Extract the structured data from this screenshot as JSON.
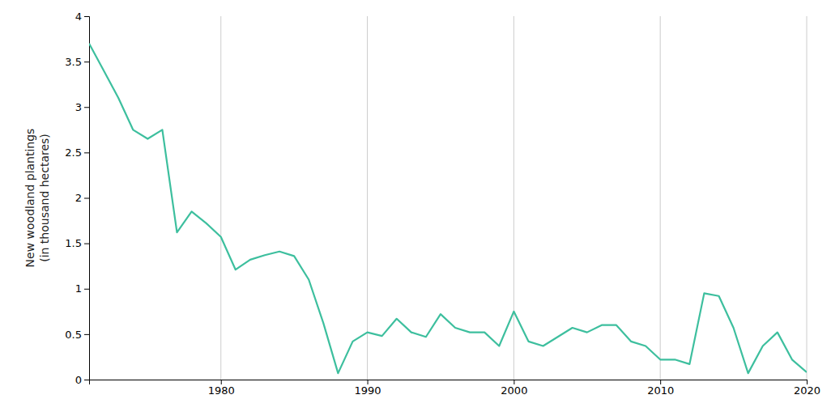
{
  "chart_data": {
    "type": "line",
    "ylabel": "New woodland plantings\n(in thousand hectares)",
    "x": [
      1971,
      1972,
      1973,
      1974,
      1975,
      1976,
      1977,
      1978,
      1979,
      1980,
      1981,
      1982,
      1983,
      1984,
      1985,
      1986,
      1987,
      1988,
      1989,
      1990,
      1991,
      1992,
      1993,
      1994,
      1995,
      1996,
      1997,
      1998,
      1999,
      2000,
      2001,
      2002,
      2003,
      2004,
      2005,
      2006,
      2007,
      2008,
      2009,
      2010,
      2011,
      2012,
      2013,
      2014,
      2015,
      2016,
      2017,
      2018,
      2019,
      2020
    ],
    "values": [
      3.7,
      3.4,
      3.1,
      2.75,
      2.65,
      2.75,
      1.62,
      1.85,
      1.72,
      1.57,
      1.21,
      1.32,
      1.37,
      1.41,
      1.36,
      1.1,
      0.62,
      0.07,
      0.42,
      0.52,
      0.48,
      0.67,
      0.52,
      0.47,
      0.72,
      0.57,
      0.52,
      0.52,
      0.37,
      0.75,
      0.42,
      0.37,
      0.47,
      0.57,
      0.52,
      0.6,
      0.6,
      0.42,
      0.37,
      0.22,
      0.22,
      0.17,
      0.95,
      0.92,
      0.57,
      0.07,
      0.37,
      0.52,
      0.22,
      0.08
    ],
    "color": "#3dbf9e",
    "xlim": [
      1971,
      2020
    ],
    "ylim": [
      0,
      4.0
    ],
    "xticks": [
      1980,
      1990,
      2000,
      2010,
      2020
    ],
    "yticks": [
      0,
      0.5,
      1,
      1.5,
      2,
      2.5,
      3,
      3.5,
      4
    ],
    "grid": "x"
  }
}
